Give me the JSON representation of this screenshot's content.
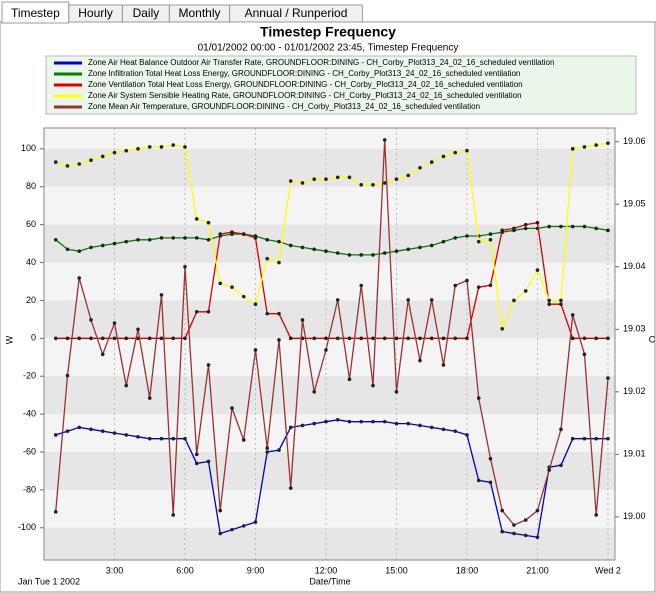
{
  "tabs": [
    "Timestep",
    "Hourly",
    "Daily",
    "Monthly",
    "Annual / Runperiod"
  ],
  "chart_data": {
    "type": "line",
    "title": "Timestep Frequency",
    "subtitle": "01/01/2002 00:00 - 01/01/2002 23:45, Timestep Frequency",
    "xlabel": "Date/Time",
    "ylabel": "W",
    "y2label": "C",
    "date_annotation": "Jan Tue 1 2002",
    "grid": true,
    "legend": "top",
    "xlim": [
      0,
      24.3
    ],
    "xticks": [
      {
        "value": 3,
        "label": "3:00"
      },
      {
        "value": 6,
        "label": "6:00"
      },
      {
        "value": 9,
        "label": "9:00"
      },
      {
        "value": 12,
        "label": "12:00"
      },
      {
        "value": 15,
        "label": "15:00"
      },
      {
        "value": 18,
        "label": "18:00"
      },
      {
        "value": 21,
        "label": "21:00"
      },
      {
        "value": 24,
        "label": "Wed 2"
      }
    ],
    "ylim": [
      -117,
      111
    ],
    "yticks": [
      -100,
      -80,
      -60,
      -40,
      -20,
      0,
      20,
      40,
      60,
      80,
      100
    ],
    "y2lim": [
      18.9931,
      19.0622
    ],
    "y2ticks": [
      {
        "value": 19,
        "label": "19.00"
      },
      19.01,
      19.02,
      19.03,
      19.04,
      19.05,
      19.06
    ],
    "x": [
      0.5,
      1,
      1.5,
      2,
      2.5,
      3,
      3.5,
      4,
      4.5,
      5,
      5.5,
      6,
      6.5,
      7,
      7.5,
      8,
      8.5,
      9,
      9.5,
      10,
      10.5,
      11,
      11.5,
      12,
      12.5,
      13,
      13.5,
      14,
      14.5,
      15,
      15.5,
      16,
      16.5,
      17,
      17.5,
      18,
      18.5,
      19,
      19.5,
      20,
      20.5,
      21,
      21.5,
      22,
      22.5,
      23,
      23.5,
      24
    ],
    "series": [
      {
        "name": "Zone Air Heat Balance Outdoor Air Transfer Rate, GROUNDFLOOR:DINING - CH_Corby_Plot313_24_02_16_scheduled ventilation",
        "color": "#0000cc",
        "values": [
          -51,
          -49,
          -47,
          -48,
          -49,
          -50,
          -51,
          -52,
          -53,
          -53,
          -53,
          -53,
          -66,
          -65,
          -103,
          -101,
          -99,
          -97,
          -60,
          -59,
          -47,
          -46,
          -45,
          -44,
          -43,
          -44,
          -44,
          -44,
          -44,
          -45,
          -45,
          -46,
          -47,
          -48,
          -49,
          -51,
          -75,
          -76,
          -102,
          -103,
          -104,
          -105,
          -68,
          -67,
          -53,
          -53,
          -53,
          -53
        ]
      },
      {
        "name": "Zone Infiltration Total Heat Loss Energy, GROUNDFLOOR:DINING - CH_Corby_Plot313_24_02_16_scheduled ventilation",
        "color": "#008000",
        "values": [
          52,
          47,
          46,
          48,
          49,
          50,
          51,
          52,
          52,
          53,
          53,
          53,
          53,
          52,
          54,
          55,
          55,
          54,
          52,
          51,
          49,
          48,
          47,
          46,
          45,
          44,
          44,
          44,
          45,
          46,
          47,
          48,
          49,
          51,
          53,
          54,
          54,
          55,
          56,
          57,
          58,
          58,
          59,
          59,
          59,
          59,
          58,
          57
        ]
      },
      {
        "name": "Zone Ventilation Total Heat Loss Energy, GROUNDFLOOR:DINING - CH_Corby_Plot313_24_02_16_scheduled ventilation",
        "color": "#dd0000",
        "values": [
          0,
          0,
          0,
          0,
          0,
          0,
          0,
          0,
          0,
          0,
          0,
          0,
          14,
          14,
          55,
          56,
          55,
          53,
          13,
          13,
          0,
          0,
          0,
          0,
          0,
          0,
          0,
          0,
          0,
          0,
          0,
          0,
          0,
          0,
          0,
          0,
          27,
          28,
          57,
          58,
          60,
          61,
          18,
          18,
          0,
          0,
          0,
          0
        ]
      },
      {
        "name": "Zone Air System Sensible Heating Rate, GROUNDFLOOR:DINING - CH_Corby_Plot313_24_02_16_scheduled ventilation",
        "color": "#ffff00",
        "values": [
          93,
          91,
          92,
          94,
          96,
          98,
          99,
          100,
          101,
          101,
          102,
          101,
          63,
          61,
          29,
          27,
          22,
          18,
          42,
          40,
          83,
          82,
          84,
          84,
          85,
          85,
          81,
          81,
          82,
          84,
          86,
          90,
          93,
          96,
          98,
          99,
          51,
          52,
          5,
          20,
          25,
          36,
          20,
          20,
          100,
          101,
          102,
          103
        ]
      },
      {
        "name": "Zone Mean Air Temperature, GROUNDFLOOR:DINING - CH_Corby_Plot313_24_02_16_scheduled ventilation",
        "color": "#993333",
        "axis": "y2",
        "values": [
          19.0008,
          19.0226,
          19.0382,
          19.0315,
          19.026,
          19.031,
          19.021,
          19.03,
          19.019,
          19.0355,
          19.0003,
          19.04,
          19.01,
          19.0243,
          19.001,
          19.0174,
          19.0123,
          19.0267,
          19.011,
          19.0283,
          19.0046,
          19.0315,
          19.02,
          19.0267,
          19.0347,
          19.022,
          19.037,
          19.021,
          19.0603,
          19.02,
          19.0347,
          19.025,
          19.0347,
          19.0243,
          19.037,
          19.0378,
          19.019,
          19.0093,
          19.001,
          18.9987,
          18.9995,
          19.001,
          19.0075,
          19.014,
          19.0323,
          19.026,
          19.0003,
          19.0222
        ]
      }
    ]
  }
}
